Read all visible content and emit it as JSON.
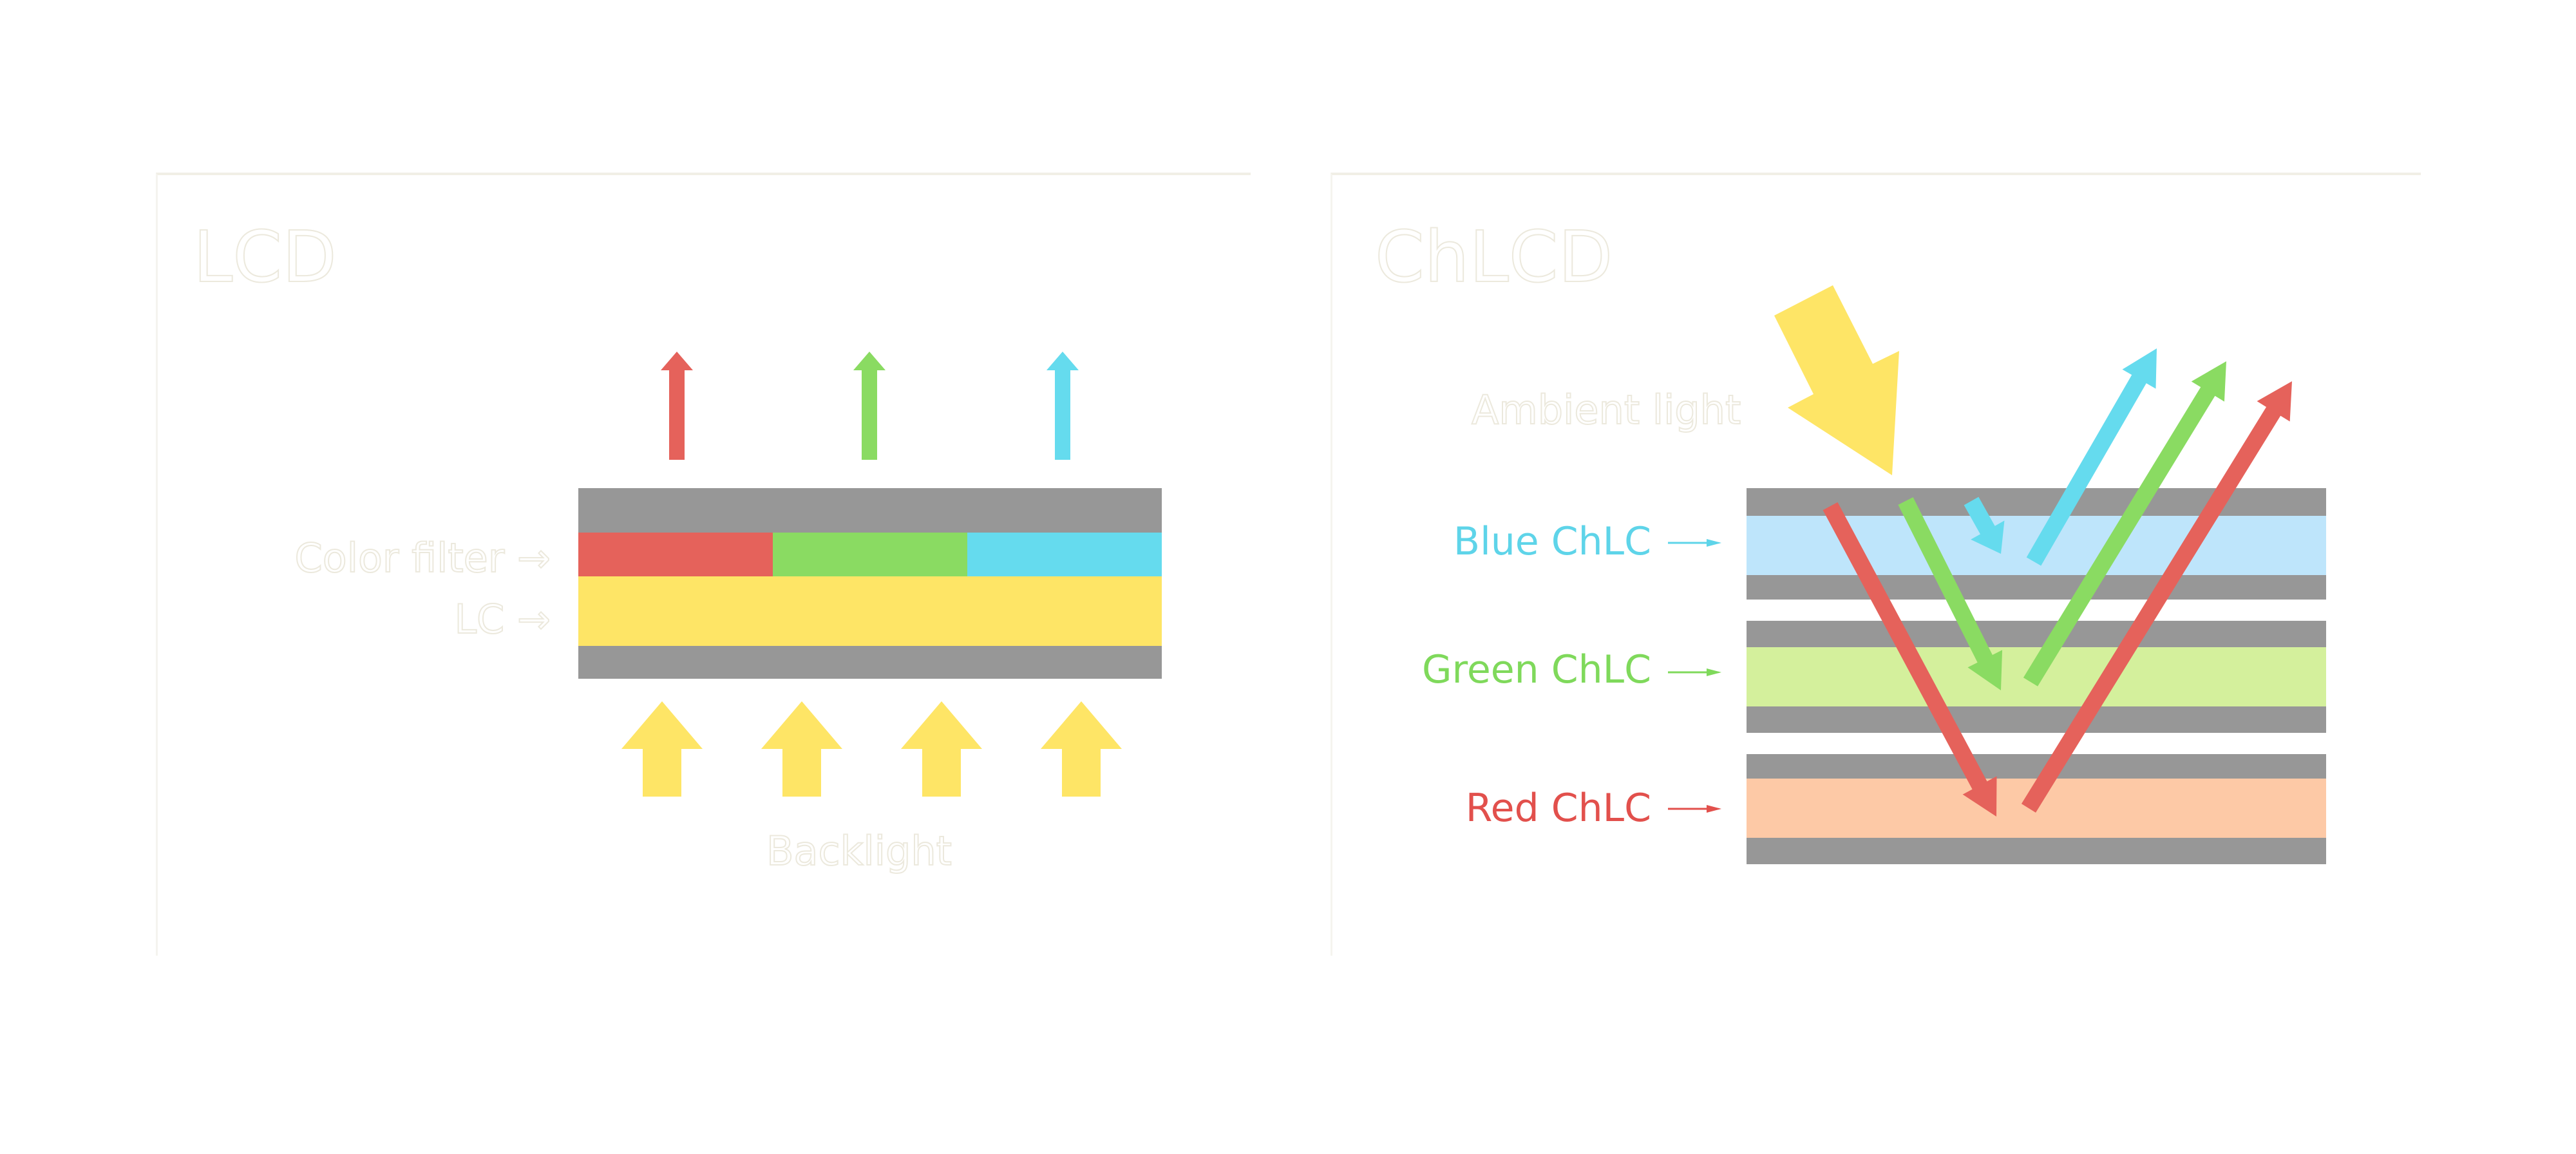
{
  "left_panel": {
    "title": "LCD",
    "labels": {
      "color_filter": "Color filter",
      "lc": "LC",
      "backlight": "Backlight"
    }
  },
  "right_panel": {
    "title": "ChLCD",
    "labels": {
      "ambient": "Ambient light",
      "blue": "Blue ChLC",
      "green": "Green ChLC",
      "red": "Red ChLC"
    }
  },
  "colors": {
    "gray": "#979797",
    "red": "#e5625b",
    "green": "#8adb62",
    "cyan": "#65dbee",
    "yellow": "#fee566",
    "blue_layer": "#bee5fb",
    "green_layer": "#d4f09c",
    "red_layer": "#fdc9a6",
    "blue_text": "#5ed4e9",
    "green_text": "#7fd95b",
    "red_text": "#e2504c"
  }
}
